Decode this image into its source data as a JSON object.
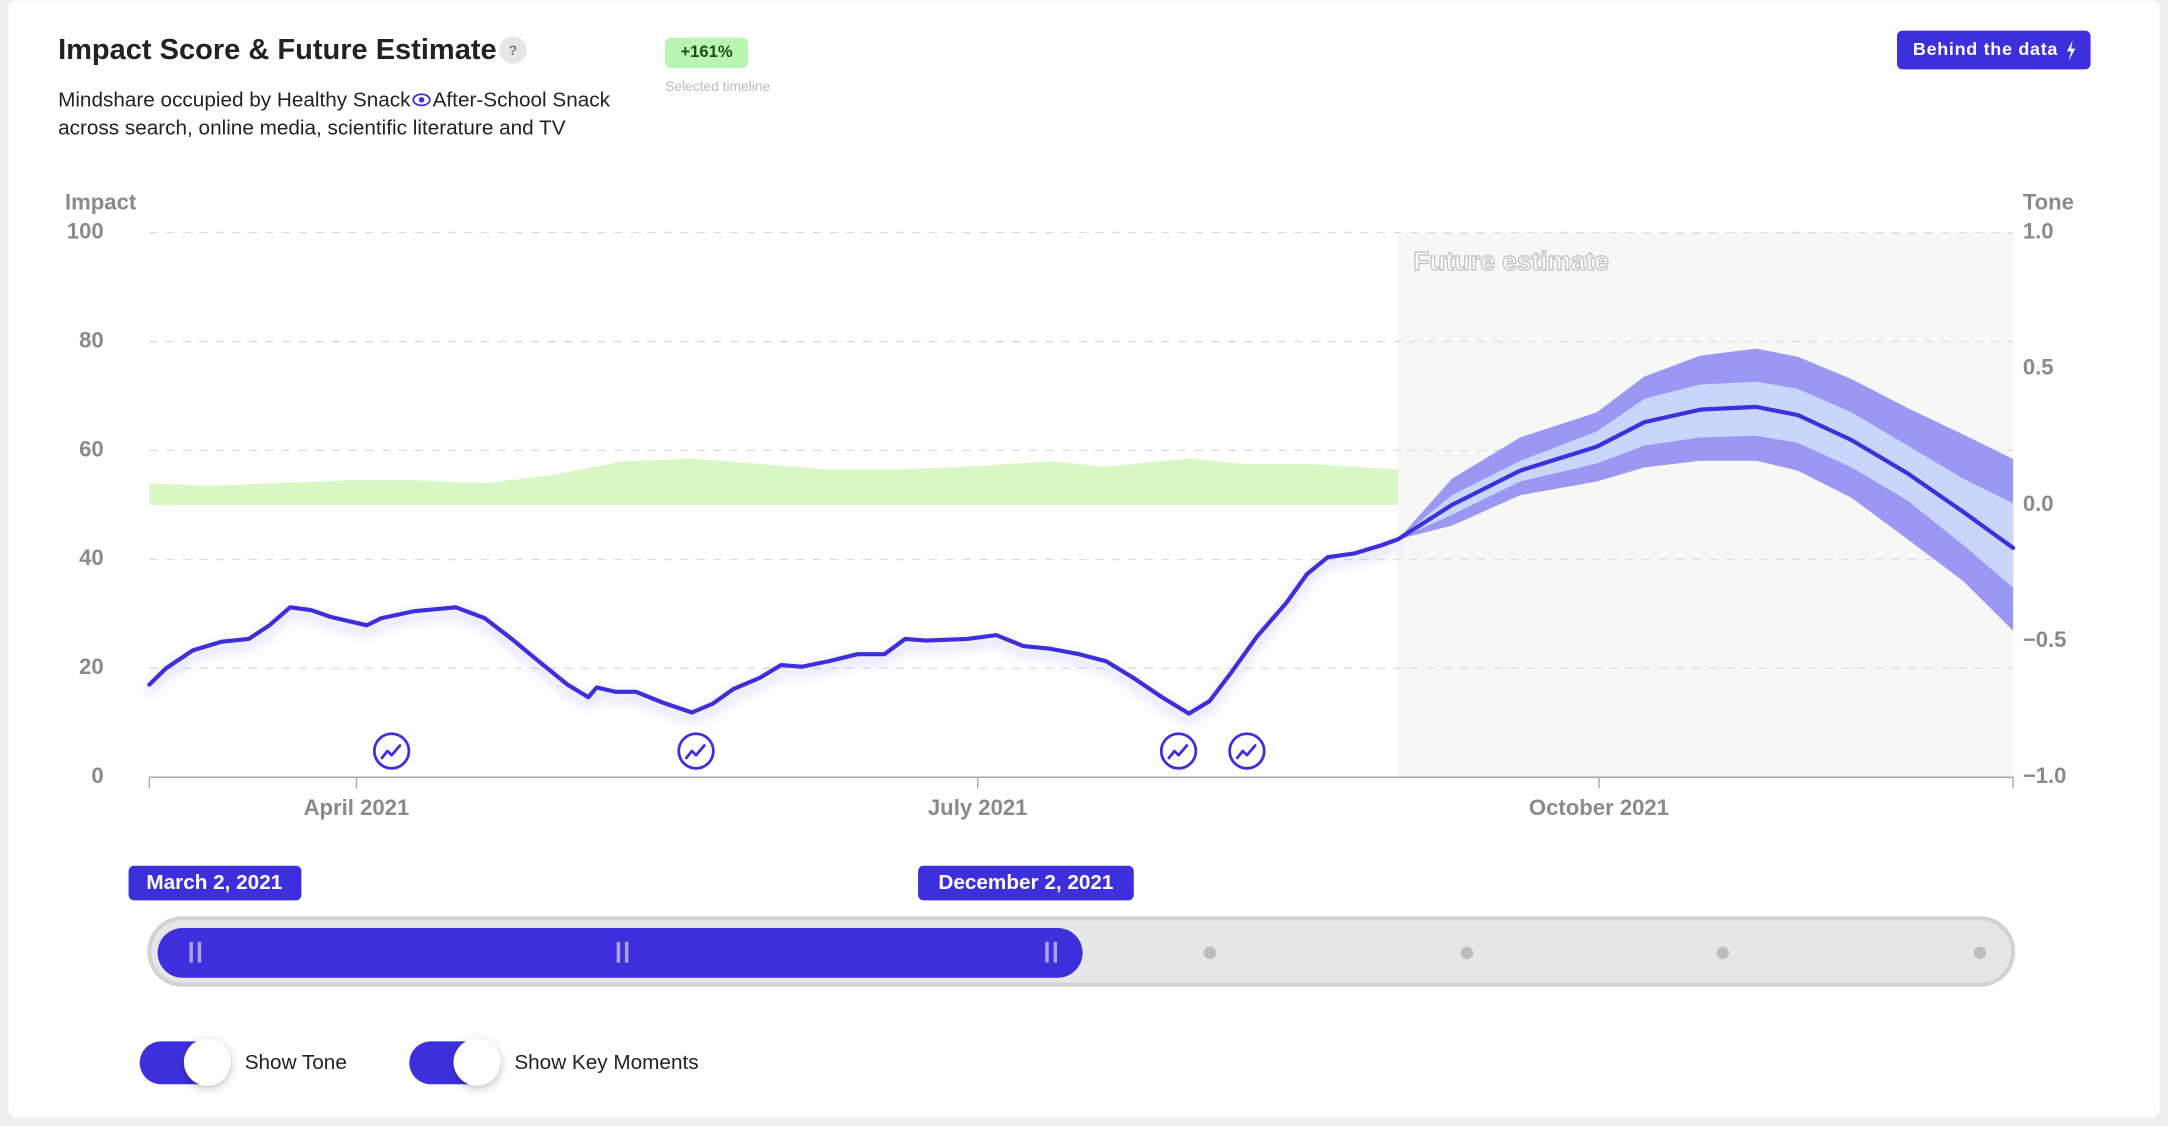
{
  "header": {
    "title": "Impact Score & Future Estimate",
    "help": "?",
    "badge": "+161%",
    "badge_caption": "Selected timeline",
    "button": "Behind the data",
    "subtitle": [
      "Mindshare occupied by Healthy Snack",
      "After-School Snack",
      "across search, online media, scientific literature and TV"
    ]
  },
  "chart_data": {
    "type": "line",
    "y_label": "Impact",
    "y2_label": "Tone",
    "future_label": "Future estimate",
    "xlim": [
      3,
      12
    ],
    "xticks": [
      {
        "value": 4,
        "label": "April 2021"
      },
      {
        "value": 7,
        "label": "July 2021"
      },
      {
        "value": 10,
        "label": "October 2021"
      }
    ],
    "ylim": [
      0,
      100
    ],
    "yticks": [
      0,
      20,
      40,
      60,
      80,
      100
    ],
    "grid": true,
    "y2lim": [
      -1,
      1
    ],
    "y2ticks": [
      {
        "value": -1,
        "label": "−1.0"
      },
      {
        "value": -0.5,
        "label": "−0.5"
      },
      {
        "value": 0,
        "label": "0.0"
      },
      {
        "value": 0.5,
        "label": "0.5"
      },
      {
        "value": 1,
        "label": "1.0"
      }
    ],
    "color": "#3d2fdc",
    "x": [
      3.0,
      3.08,
      3.21,
      3.35,
      3.48,
      3.58,
      3.68,
      3.78,
      3.88,
      4.05,
      4.12,
      4.28,
      4.48,
      4.62,
      4.75,
      4.88,
      5.02,
      5.12,
      5.16,
      5.25,
      5.35,
      5.48,
      5.62,
      5.72,
      5.82,
      5.95,
      6.05,
      6.15,
      6.28,
      6.42,
      6.55,
      6.65,
      6.75,
      6.95,
      7.09,
      7.22,
      7.35,
      7.49,
      7.62,
      7.75,
      7.89,
      8.02,
      8.12,
      8.22,
      8.35,
      8.49,
      8.59,
      8.69,
      8.82,
      8.95,
      9.03
    ],
    "values": [
      17,
      20,
      23.3,
      24.9,
      25.4,
      27.9,
      31.2,
      30.7,
      29.4,
      27.9,
      29.2,
      30.5,
      31.2,
      29.2,
      25.4,
      21.3,
      17,
      14.7,
      16.5,
      15.7,
      15.7,
      13.7,
      11.9,
      13.5,
      16.2,
      18.3,
      20.6,
      20.3,
      21.3,
      22.6,
      22.6,
      25.4,
      25.1,
      25.4,
      26.1,
      24.1,
      23.6,
      22.6,
      21.3,
      18.3,
      14.7,
      11.7,
      14,
      19,
      25.9,
      32,
      37.3,
      40.4,
      41.1,
      42.6,
      43.7
    ],
    "tone": {
      "axis": "y2",
      "color": "#d9f7c4",
      "x": [
        3.0,
        3.28,
        3.95,
        4.28,
        4.62,
        4.95,
        5.28,
        5.62,
        5.95,
        6.28,
        6.62,
        6.95,
        7.35,
        7.62,
        8.02,
        8.29,
        8.62,
        9.03
      ],
      "values": [
        0.08,
        0.07,
        0.09,
        0.09,
        0.08,
        0.11,
        0.16,
        0.17,
        0.15,
        0.13,
        0.13,
        0.14,
        0.16,
        0.14,
        0.17,
        0.15,
        0.15,
        0.13
      ]
    },
    "forecast": {
      "inner_color": "#c8d6fb",
      "outer_color": "#9a98f2",
      "x": [
        9.03,
        9.29,
        9.62,
        9.99,
        10.22,
        10.49,
        10.76,
        10.96,
        11.22,
        11.49,
        11.76,
        12
      ],
      "values": [
        43.7,
        50,
        56.3,
        60.7,
        65.2,
        67.5,
        68,
        66.5,
        61.9,
        55.8,
        48.7,
        42.1
      ],
      "inner_high": [
        43.7,
        51.8,
        58.1,
        63.5,
        69.5,
        72.1,
        72.6,
        71.3,
        67,
        60.9,
        54.8,
        50.3
      ],
      "inner_low": [
        43.7,
        48.2,
        54.3,
        57.6,
        60.9,
        62.4,
        62.7,
        61.4,
        56.9,
        50.8,
        42.6,
        34.8
      ],
      "outer_high": [
        43.7,
        54.8,
        62.4,
        67,
        73.6,
        77.4,
        78.7,
        77.2,
        73.1,
        67.8,
        62.9,
        58.4
      ],
      "outer_low": [
        43.7,
        46.2,
        51.8,
        54.3,
        56.9,
        58.1,
        58.1,
        56.3,
        51.3,
        43.7,
        36,
        26.9
      ]
    },
    "key_moments": [
      4.17,
      5.64,
      7.97,
      8.3
    ]
  },
  "timeline": {
    "start": "March 2, 2021",
    "end": "December 2, 2021"
  },
  "toggles": [
    "Show Tone",
    "Show Key Moments"
  ]
}
